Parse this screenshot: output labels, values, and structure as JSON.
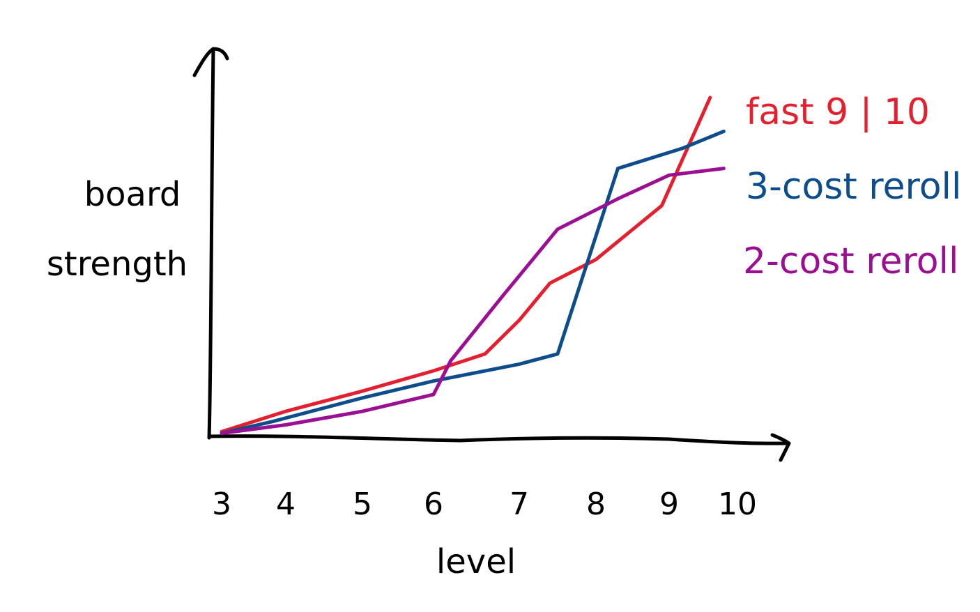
{
  "chart_data": {
    "type": "line",
    "title": "",
    "xlabel": "level",
    "ylabel": "board strength",
    "categories": [
      "3",
      "4",
      "5",
      "6",
      "7",
      "8",
      "9",
      "10"
    ],
    "x": [
      3,
      4,
      5,
      6,
      7,
      8,
      9,
      10
    ],
    "ylim": [
      0,
      100
    ],
    "grid": false,
    "legend_placement": "right",
    "series": [
      {
        "name": "fast 9 | 10",
        "color": "#e3202f",
        "points": [
          [
            3,
            1
          ],
          [
            4,
            7
          ],
          [
            5,
            13
          ],
          [
            6,
            19
          ],
          [
            6.6,
            24
          ],
          [
            7,
            34
          ],
          [
            7.4,
            45
          ],
          [
            8,
            52
          ],
          [
            8.9,
            68
          ],
          [
            9.6,
            100
          ]
        ]
      },
      {
        "name": "3-cost reroll",
        "color": "#0e4d8c",
        "points": [
          [
            3,
            0.5
          ],
          [
            3.8,
            4
          ],
          [
            5,
            11
          ],
          [
            6,
            16
          ],
          [
            7,
            21
          ],
          [
            7.5,
            24
          ],
          [
            8.3,
            79
          ],
          [
            9.2,
            85
          ],
          [
            9.8,
            90
          ]
        ]
      },
      {
        "name": "2-cost reroll",
        "color": "#9b0f93",
        "points": [
          [
            3,
            0.5
          ],
          [
            4,
            3
          ],
          [
            5,
            7
          ],
          [
            6,
            12
          ],
          [
            6.2,
            22
          ],
          [
            6.8,
            41
          ],
          [
            7.5,
            61
          ],
          [
            8.3,
            70
          ],
          [
            9,
            77
          ],
          [
            9.8,
            79
          ]
        ]
      }
    ]
  }
}
